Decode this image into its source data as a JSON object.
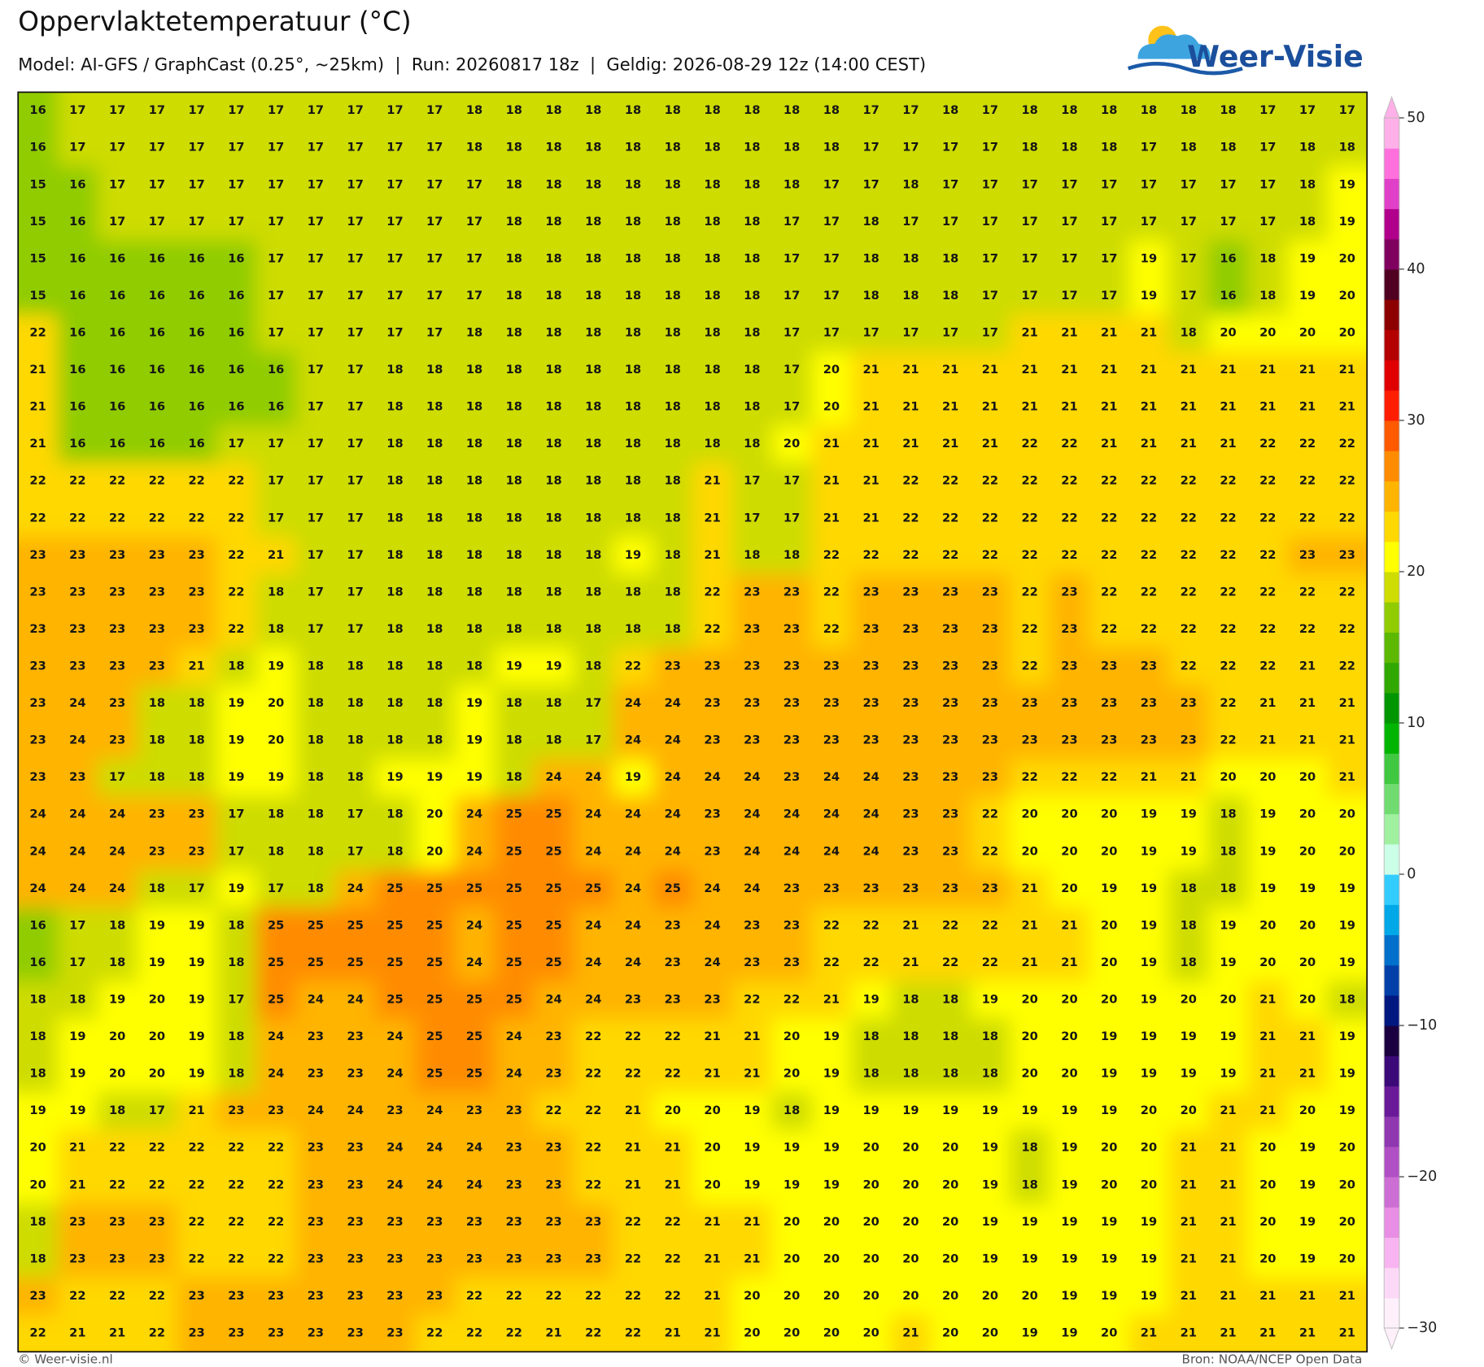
{
  "header": {
    "title": "Oppervlaktetemperatuur (°C)",
    "subtitle": "Model: AI-GFS / GraphCast (0.25°, ~25km)  |  Run: 20260817 18z  |  Geldig: 2026-08-29 12z (14:00 CEST)"
  },
  "logo": "Weer-Visie",
  "grid": {
    "rows": [
      [
        16,
        17,
        17,
        17,
        17,
        17,
        17,
        17,
        17,
        17,
        17,
        18,
        18,
        18,
        18,
        18,
        18,
        18,
        18,
        18,
        18,
        17,
        17,
        18,
        17,
        18,
        18,
        18,
        18,
        18,
        18,
        17,
        17,
        17
      ],
      [
        16,
        17,
        17,
        17,
        17,
        17,
        17,
        17,
        17,
        17,
        17,
        18,
        18,
        18,
        18,
        18,
        18,
        18,
        18,
        18,
        18,
        17,
        17,
        17,
        17,
        18,
        18,
        18,
        17,
        18,
        18,
        17,
        18,
        18
      ],
      [
        15,
        16,
        17,
        17,
        17,
        17,
        17,
        17,
        17,
        17,
        17,
        17,
        18,
        18,
        18,
        18,
        18,
        18,
        18,
        18,
        17,
        17,
        18,
        17,
        17,
        17,
        17,
        17,
        17,
        17,
        17,
        17,
        18,
        19
      ],
      [
        15,
        16,
        17,
        17,
        17,
        17,
        17,
        17,
        17,
        17,
        17,
        17,
        18,
        18,
        18,
        18,
        18,
        18,
        18,
        17,
        17,
        18,
        17,
        17,
        17,
        17,
        17,
        17,
        17,
        17,
        17,
        17,
        18,
        19
      ],
      [
        15,
        16,
        16,
        16,
        16,
        16,
        17,
        17,
        17,
        17,
        17,
        17,
        18,
        18,
        18,
        18,
        18,
        18,
        18,
        17,
        17,
        18,
        18,
        18,
        17,
        17,
        17,
        17,
        19,
        17,
        16,
        18,
        19,
        20
      ],
      [
        15,
        16,
        16,
        16,
        16,
        16,
        17,
        17,
        17,
        17,
        17,
        17,
        18,
        18,
        18,
        18,
        18,
        18,
        18,
        17,
        17,
        18,
        18,
        18,
        17,
        17,
        17,
        17,
        19,
        17,
        16,
        18,
        19,
        20
      ],
      [
        22,
        16,
        16,
        16,
        16,
        16,
        17,
        17,
        17,
        17,
        17,
        18,
        18,
        18,
        18,
        18,
        18,
        18,
        18,
        17,
        17,
        17,
        17,
        17,
        17,
        21,
        21,
        21,
        21,
        18,
        20,
        20,
        20,
        20
      ],
      [
        21,
        16,
        16,
        16,
        16,
        16,
        16,
        17,
        17,
        18,
        18,
        18,
        18,
        18,
        18,
        18,
        18,
        18,
        18,
        17,
        20,
        21,
        21,
        21,
        21,
        21,
        21,
        21,
        21,
        21,
        21,
        21,
        21,
        21
      ],
      [
        21,
        16,
        16,
        16,
        16,
        16,
        16,
        17,
        17,
        18,
        18,
        18,
        18,
        18,
        18,
        18,
        18,
        18,
        18,
        17,
        20,
        21,
        21,
        21,
        21,
        21,
        21,
        21,
        21,
        21,
        21,
        21,
        21,
        21
      ],
      [
        21,
        16,
        16,
        16,
        16,
        17,
        17,
        17,
        17,
        18,
        18,
        18,
        18,
        18,
        18,
        18,
        18,
        18,
        18,
        20,
        21,
        21,
        21,
        21,
        21,
        22,
        22,
        21,
        21,
        21,
        21,
        22,
        22,
        22
      ],
      [
        22,
        22,
        22,
        22,
        22,
        22,
        17,
        17,
        17,
        18,
        18,
        18,
        18,
        18,
        18,
        18,
        18,
        21,
        17,
        17,
        21,
        21,
        22,
        22,
        22,
        22,
        22,
        22,
        22,
        22,
        22,
        22,
        22,
        22
      ],
      [
        22,
        22,
        22,
        22,
        22,
        22,
        17,
        17,
        17,
        18,
        18,
        18,
        18,
        18,
        18,
        18,
        18,
        21,
        17,
        17,
        21,
        21,
        22,
        22,
        22,
        22,
        22,
        22,
        22,
        22,
        22,
        22,
        22,
        22
      ],
      [
        23,
        23,
        23,
        23,
        23,
        22,
        21,
        17,
        17,
        18,
        18,
        18,
        18,
        18,
        18,
        19,
        18,
        21,
        18,
        18,
        22,
        22,
        22,
        22,
        22,
        22,
        22,
        22,
        22,
        22,
        22,
        22,
        23,
        23
      ],
      [
        23,
        23,
        23,
        23,
        23,
        22,
        18,
        17,
        17,
        18,
        18,
        18,
        18,
        18,
        18,
        18,
        18,
        22,
        23,
        23,
        22,
        23,
        23,
        23,
        23,
        22,
        23,
        22,
        22,
        22,
        22,
        22,
        22,
        22
      ],
      [
        23,
        23,
        23,
        23,
        23,
        22,
        18,
        17,
        17,
        18,
        18,
        18,
        18,
        18,
        18,
        18,
        18,
        22,
        23,
        23,
        22,
        23,
        23,
        23,
        23,
        22,
        23,
        22,
        22,
        22,
        22,
        22,
        22,
        22
      ],
      [
        23,
        23,
        23,
        23,
        21,
        18,
        19,
        18,
        18,
        18,
        18,
        18,
        19,
        19,
        18,
        22,
        23,
        23,
        23,
        23,
        23,
        23,
        23,
        23,
        23,
        22,
        23,
        23,
        23,
        22,
        22,
        22,
        21,
        22
      ],
      [
        23,
        24,
        23,
        18,
        18,
        19,
        20,
        18,
        18,
        18,
        18,
        19,
        18,
        18,
        17,
        24,
        24,
        23,
        23,
        23,
        23,
        23,
        23,
        23,
        23,
        23,
        23,
        23,
        23,
        23,
        22,
        21,
        21,
        21
      ],
      [
        23,
        24,
        23,
        18,
        18,
        19,
        20,
        18,
        18,
        18,
        18,
        19,
        18,
        18,
        17,
        24,
        24,
        23,
        23,
        23,
        23,
        23,
        23,
        23,
        23,
        23,
        23,
        23,
        23,
        23,
        22,
        21,
        21,
        21
      ],
      [
        23,
        23,
        17,
        18,
        18,
        19,
        19,
        18,
        18,
        19,
        19,
        19,
        18,
        24,
        24,
        19,
        24,
        24,
        24,
        23,
        24,
        24,
        23,
        23,
        23,
        22,
        22,
        22,
        21,
        21,
        20,
        20,
        20,
        21
      ],
      [
        24,
        24,
        24,
        23,
        23,
        17,
        18,
        18,
        17,
        18,
        20,
        24,
        25,
        25,
        24,
        24,
        24,
        23,
        24,
        24,
        24,
        24,
        23,
        23,
        22,
        20,
        20,
        20,
        19,
        19,
        18,
        19,
        20,
        20
      ],
      [
        24,
        24,
        24,
        23,
        23,
        17,
        18,
        18,
        17,
        18,
        20,
        24,
        25,
        25,
        24,
        24,
        24,
        23,
        24,
        24,
        24,
        24,
        23,
        23,
        22,
        20,
        20,
        20,
        19,
        19,
        18,
        19,
        20,
        20
      ],
      [
        24,
        24,
        24,
        18,
        17,
        19,
        17,
        18,
        24,
        25,
        25,
        25,
        25,
        25,
        25,
        24,
        25,
        24,
        24,
        23,
        23,
        23,
        23,
        23,
        23,
        21,
        20,
        19,
        19,
        18,
        18,
        19,
        19,
        19
      ],
      [
        16,
        17,
        18,
        19,
        19,
        18,
        25,
        25,
        25,
        25,
        25,
        24,
        25,
        25,
        24,
        24,
        23,
        24,
        23,
        23,
        22,
        22,
        21,
        22,
        22,
        21,
        21,
        20,
        19,
        18,
        19,
        20,
        20,
        19
      ],
      [
        16,
        17,
        18,
        19,
        19,
        18,
        25,
        25,
        25,
        25,
        25,
        24,
        25,
        25,
        24,
        24,
        23,
        24,
        23,
        23,
        22,
        22,
        21,
        22,
        22,
        21,
        21,
        20,
        19,
        18,
        19,
        20,
        20,
        19
      ],
      [
        18,
        18,
        19,
        20,
        19,
        17,
        25,
        24,
        24,
        25,
        25,
        25,
        25,
        24,
        24,
        23,
        23,
        23,
        22,
        22,
        21,
        19,
        18,
        18,
        19,
        20,
        20,
        20,
        19,
        20,
        20,
        21,
        20,
        18
      ],
      [
        18,
        19,
        20,
        20,
        19,
        18,
        24,
        23,
        23,
        24,
        25,
        25,
        24,
        23,
        22,
        22,
        22,
        21,
        21,
        20,
        19,
        18,
        18,
        18,
        18,
        20,
        20,
        19,
        19,
        19,
        19,
        21,
        21,
        19
      ],
      [
        18,
        19,
        20,
        20,
        19,
        18,
        24,
        23,
        23,
        24,
        25,
        25,
        24,
        23,
        22,
        22,
        22,
        21,
        21,
        20,
        19,
        18,
        18,
        18,
        18,
        20,
        20,
        19,
        19,
        19,
        19,
        21,
        21,
        19
      ],
      [
        19,
        19,
        18,
        17,
        21,
        23,
        23,
        24,
        24,
        23,
        24,
        23,
        23,
        22,
        22,
        21,
        20,
        20,
        19,
        18,
        19,
        19,
        19,
        19,
        19,
        19,
        19,
        19,
        20,
        20,
        21,
        21,
        20,
        19
      ],
      [
        20,
        21,
        22,
        22,
        22,
        22,
        22,
        23,
        23,
        24,
        24,
        24,
        23,
        23,
        22,
        21,
        21,
        20,
        19,
        19,
        19,
        20,
        20,
        20,
        19,
        18,
        19,
        20,
        20,
        21,
        21,
        20,
        19,
        20
      ],
      [
        20,
        21,
        22,
        22,
        22,
        22,
        22,
        23,
        23,
        24,
        24,
        24,
        23,
        23,
        22,
        21,
        21,
        20,
        19,
        19,
        19,
        20,
        20,
        20,
        19,
        18,
        19,
        20,
        20,
        21,
        21,
        20,
        19,
        20
      ],
      [
        18,
        23,
        23,
        23,
        22,
        22,
        22,
        23,
        23,
        23,
        23,
        23,
        23,
        23,
        23,
        22,
        22,
        21,
        21,
        20,
        20,
        20,
        20,
        20,
        19,
        19,
        19,
        19,
        19,
        21,
        21,
        20,
        19,
        20
      ],
      [
        18,
        23,
        23,
        23,
        22,
        22,
        22,
        23,
        23,
        23,
        23,
        23,
        23,
        23,
        23,
        22,
        22,
        21,
        21,
        20,
        20,
        20,
        20,
        20,
        19,
        19,
        19,
        19,
        19,
        21,
        21,
        20,
        19,
        20
      ],
      [
        23,
        22,
        22,
        22,
        23,
        23,
        23,
        23,
        23,
        23,
        23,
        22,
        22,
        22,
        22,
        22,
        22,
        21,
        20,
        20,
        20,
        20,
        20,
        20,
        20,
        20,
        19,
        19,
        19,
        21,
        21,
        21,
        21,
        21
      ],
      [
        22,
        21,
        21,
        22,
        23,
        23,
        23,
        23,
        23,
        23,
        22,
        22,
        22,
        21,
        22,
        22,
        21,
        21,
        20,
        20,
        20,
        20,
        21,
        20,
        20,
        19,
        19,
        20,
        21,
        21,
        21,
        21,
        21,
        21
      ]
    ]
  },
  "colorbar": {
    "lim": [
      -30,
      50
    ],
    "ticks": [
      50,
      40,
      30,
      20,
      10,
      0,
      {
        "value": -10,
        "label": "−10"
      },
      {
        "value": -20,
        "label": "−20"
      },
      {
        "value": -30,
        "label": "−30"
      }
    ],
    "colors": [
      "#fef0fb",
      "#fcd8f7",
      "#f8b4f0",
      "#e88ee4",
      "#cc6ed4",
      "#b050c4",
      "#9038b0",
      "#6a1a98",
      "#3c0a78",
      "#1a0040",
      "#001880",
      "#0040a8",
      "#0070cc",
      "#00a8e8",
      "#33ccff",
      "#ccffe8",
      "#a0f0a0",
      "#70dc70",
      "#40c840",
      "#00b400",
      "#009600",
      "#30a800",
      "#5cb800",
      "#90cc00",
      "#cedc00",
      "#ffff00",
      "#ffd800",
      "#ffb400",
      "#ff8c00",
      "#ff5a00",
      "#ff1e00",
      "#e00000",
      "#b40000",
      "#8c0000",
      "#500020",
      "#800060",
      "#b0008c",
      "#e040c8",
      "#ff70dc",
      "#ffb0e8"
    ]
  },
  "footer": {
    "left": "© Weer-visie.nl",
    "right": "Bron: NOAA/NCEP Open Data"
  }
}
